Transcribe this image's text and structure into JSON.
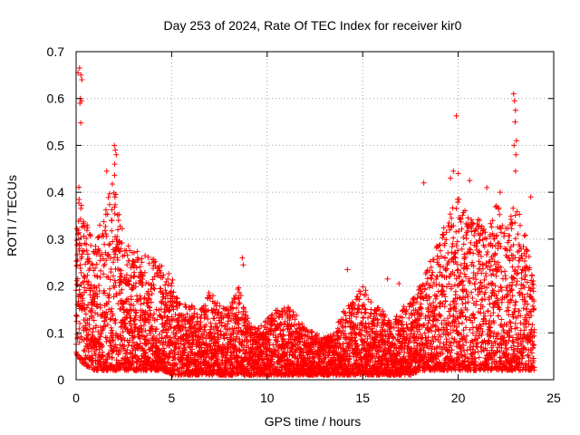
{
  "chart_data": {
    "type": "scatter",
    "title": "Day 253 of 2024, Rate Of TEC Index for receiver kir0",
    "xlabel": "GPS time / hours",
    "ylabel": "ROTI / TECUs",
    "xlim": [
      0,
      25
    ],
    "ylim": [
      0,
      0.7
    ],
    "xticks": [
      0,
      5,
      10,
      15,
      20,
      25
    ],
    "yticks": [
      0,
      0.1,
      0.2,
      0.3,
      0.4,
      0.5,
      0.6,
      0.7
    ],
    "ytick_labels": [
      "0",
      "0.1",
      "0.2",
      "0.3",
      "0.4",
      "0.5",
      "0.6",
      "0.7"
    ],
    "grid": true,
    "marker": "+",
    "color": "#ff0000",
    "series": [
      {
        "name": "ROTI",
        "envelope": {
          "x": [
            0.0,
            0.1,
            0.2,
            0.5,
            1.0,
            1.5,
            2.0,
            2.5,
            3.0,
            3.5,
            4.0,
            4.5,
            5.0,
            5.5,
            6.0,
            6.5,
            7.0,
            7.5,
            8.0,
            8.5,
            9.0,
            9.5,
            10.0,
            10.5,
            11.0,
            11.5,
            12.0,
            12.5,
            13.0,
            13.5,
            14.0,
            14.5,
            15.0,
            15.5,
            16.0,
            16.5,
            17.0,
            17.5,
            18.0,
            18.5,
            19.0,
            19.5,
            20.0,
            20.5,
            21.0,
            21.5,
            22.0,
            22.5,
            23.0,
            23.5,
            24.0
          ],
          "ymax": [
            0.3,
            0.43,
            0.4,
            0.35,
            0.3,
            0.37,
            0.45,
            0.3,
            0.28,
            0.27,
            0.26,
            0.25,
            0.22,
            0.17,
            0.16,
            0.15,
            0.19,
            0.16,
            0.15,
            0.2,
            0.13,
            0.11,
            0.13,
            0.15,
            0.16,
            0.14,
            0.11,
            0.1,
            0.09,
            0.1,
            0.15,
            0.17,
            0.21,
            0.16,
            0.15,
            0.12,
            0.15,
            0.17,
            0.2,
            0.25,
            0.3,
            0.35,
            0.4,
            0.36,
            0.35,
            0.32,
            0.38,
            0.35,
            0.38,
            0.32,
            0.2
          ],
          "ymin": [
            0.02,
            0.05,
            0.04,
            0.03,
            0.02,
            0.02,
            0.02,
            0.02,
            0.02,
            0.02,
            0.02,
            0.02,
            0.01,
            0.01,
            0.01,
            0.01,
            0.01,
            0.01,
            0.01,
            0.01,
            0.01,
            0.01,
            0.01,
            0.01,
            0.01,
            0.01,
            0.01,
            0.01,
            0.01,
            0.01,
            0.01,
            0.01,
            0.01,
            0.01,
            0.01,
            0.01,
            0.01,
            0.01,
            0.02,
            0.02,
            0.02,
            0.02,
            0.02,
            0.02,
            0.02,
            0.02,
            0.02,
            0.02,
            0.02,
            0.02,
            0.02
          ]
        },
        "outliers": [
          {
            "x": 0.1,
            "y": 0.655
          },
          {
            "x": 0.18,
            "y": 0.665
          },
          {
            "x": 0.25,
            "y": 0.65
          },
          {
            "x": 0.22,
            "y": 0.6
          },
          {
            "x": 0.28,
            "y": 0.595
          },
          {
            "x": 0.2,
            "y": 0.59
          },
          {
            "x": 0.24,
            "y": 0.548
          },
          {
            "x": 0.3,
            "y": 0.64
          },
          {
            "x": 2.0,
            "y": 0.5
          },
          {
            "x": 2.05,
            "y": 0.49
          },
          {
            "x": 2.1,
            "y": 0.48
          },
          {
            "x": 2.02,
            "y": 0.46
          },
          {
            "x": 1.6,
            "y": 0.445
          },
          {
            "x": 19.9,
            "y": 0.563
          },
          {
            "x": 19.75,
            "y": 0.445
          },
          {
            "x": 20.0,
            "y": 0.44
          },
          {
            "x": 22.9,
            "y": 0.61
          },
          {
            "x": 22.95,
            "y": 0.595
          },
          {
            "x": 23.0,
            "y": 0.575
          },
          {
            "x": 22.98,
            "y": 0.55
          },
          {
            "x": 23.05,
            "y": 0.51
          },
          {
            "x": 22.92,
            "y": 0.5
          },
          {
            "x": 23.02,
            "y": 0.48
          },
          {
            "x": 23.0,
            "y": 0.445
          },
          {
            "x": 8.7,
            "y": 0.26
          },
          {
            "x": 8.75,
            "y": 0.245
          },
          {
            "x": 14.2,
            "y": 0.235
          },
          {
            "x": 16.3,
            "y": 0.215
          },
          {
            "x": 16.9,
            "y": 0.205
          },
          {
            "x": 18.2,
            "y": 0.42
          },
          {
            "x": 19.6,
            "y": 0.43
          },
          {
            "x": 20.6,
            "y": 0.425
          },
          {
            "x": 21.5,
            "y": 0.41
          },
          {
            "x": 22.2,
            "y": 0.4
          },
          {
            "x": 23.8,
            "y": 0.39
          }
        ]
      }
    ]
  }
}
